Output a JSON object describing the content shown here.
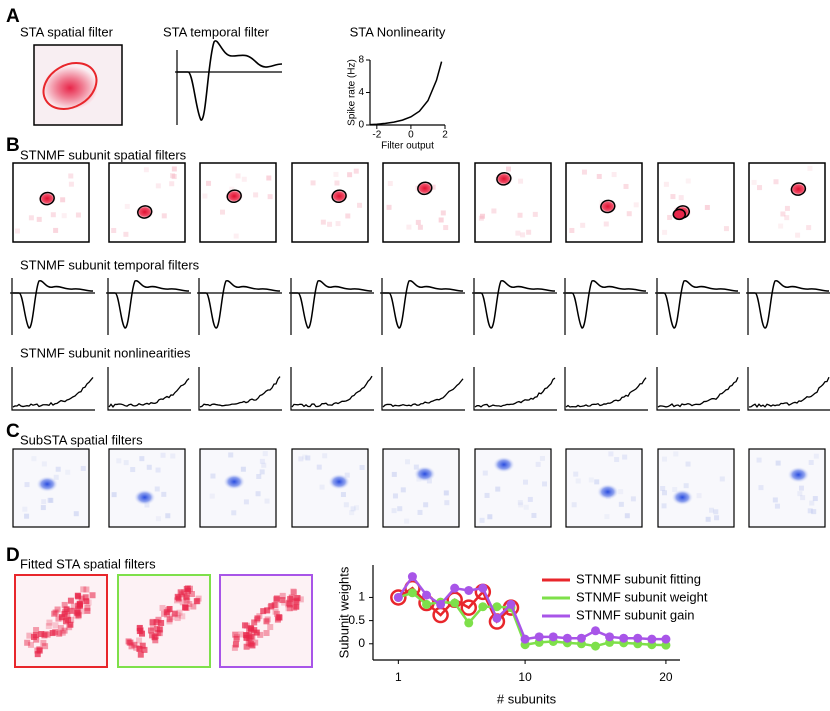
{
  "panels": {
    "A": {
      "label": "A",
      "spatial_title": "STA spatial filter",
      "temporal_title": "STA temporal filter"
    },
    "B": {
      "label": "B",
      "spatial_title": "STNMF subunit spatial filters",
      "temporal_title": "STNMF subunit temporal filters",
      "nonlinearity_title": "STNMF subunit nonlinearities"
    },
    "C": {
      "label": "C",
      "spatial_title": "SubSTA spatial filters"
    },
    "D": {
      "label": "D",
      "spatial_title": "Fitted STA spatial filters"
    }
  },
  "chart_data": [
    {
      "type": "line",
      "title": "STA Nonlinearity",
      "x_label": "Filter output",
      "y_label": "Spike rate (Hz)",
      "x": [
        -2.4,
        -2,
        -1.5,
        -1,
        -0.5,
        0,
        0.5,
        1,
        1.5,
        1.8
      ],
      "values": [
        0.05,
        0.1,
        0.2,
        0.35,
        0.6,
        1.0,
        1.7,
        3.0,
        5.5,
        7.8
      ],
      "color": "#000000",
      "xlim": [
        -2.4,
        2
      ],
      "xticks": [
        -2,
        0,
        2
      ],
      "ylim": [
        0,
        8
      ],
      "yticks": [
        0,
        4,
        8
      ]
    },
    {
      "type": "line",
      "x_label": "# subunits",
      "y_label": "Subunit weights",
      "xlim": [
        -0.8,
        21
      ],
      "xticks": [
        1,
        10,
        20
      ],
      "ylim": [
        -0.35,
        1.7
      ],
      "yticks": [
        0,
        0.5,
        1
      ],
      "legend": "upper right",
      "series": [
        {
          "name": "STNMF subunit fitting",
          "color": "#e8262b",
          "marker": "open-circle",
          "x": [
            1,
            2,
            3,
            4,
            5,
            6,
            7,
            8,
            9
          ],
          "values": [
            1.0,
            1.2,
            0.88,
            0.62,
            0.95,
            0.78,
            1.12,
            0.48,
            0.78
          ]
        },
        {
          "name": "STNMF subunit weight",
          "color": "#7ee04a",
          "marker": "dot",
          "x": [
            1,
            2,
            3,
            4,
            5,
            6,
            7,
            8,
            9,
            10,
            11,
            12,
            13,
            14,
            15,
            16,
            17,
            18,
            19,
            20
          ],
          "values": [
            1.0,
            1.1,
            0.85,
            0.9,
            0.88,
            0.45,
            0.8,
            0.8,
            0.78,
            -0.02,
            0.03,
            0.05,
            0.02,
            0.0,
            -0.05,
            0.03,
            0.02,
            0.0,
            -0.02,
            -0.03
          ]
        },
        {
          "name": "STNMF subunit gain",
          "color": "#a855e8",
          "marker": "dot",
          "x": [
            1,
            2,
            3,
            4,
            5,
            6,
            7,
            8,
            9,
            10,
            11,
            12,
            13,
            14,
            15,
            16,
            17,
            18,
            19,
            20
          ],
          "values": [
            1.0,
            1.45,
            1.05,
            0.85,
            1.2,
            1.15,
            1.2,
            0.55,
            0.85,
            0.1,
            0.15,
            0.15,
            0.12,
            0.12,
            0.28,
            0.15,
            0.12,
            0.12,
            0.1,
            0.1
          ]
        }
      ]
    }
  ]
}
